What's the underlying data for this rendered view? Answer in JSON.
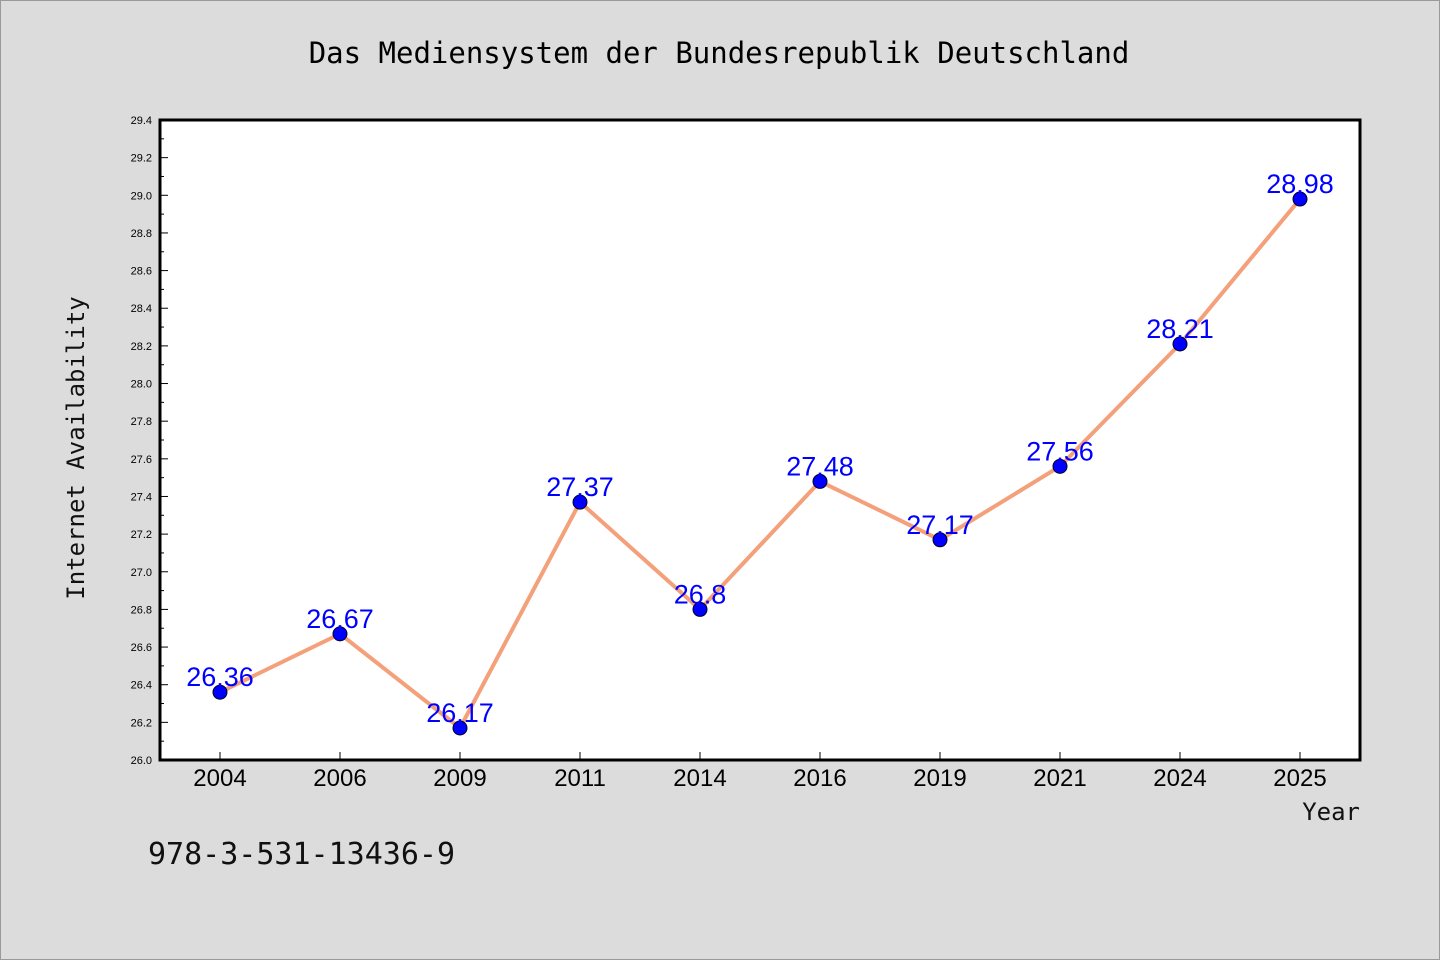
{
  "chart_data": {
    "type": "line",
    "title": "Das Mediensystem der Bundesrepublik Deutschland",
    "xlabel": "Year",
    "ylabel": "Internet Availability",
    "categories": [
      "2004",
      "2006",
      "2009",
      "2011",
      "2014",
      "2016",
      "2019",
      "2021",
      "2024",
      "2025"
    ],
    "values": [
      26.36,
      26.67,
      26.17,
      27.37,
      26.8,
      27.48,
      27.17,
      27.56,
      28.21,
      28.98
    ],
    "value_labels": [
      "26.36",
      "26.67",
      "26.17",
      "27.37",
      "26.8",
      "27.48",
      "27.17",
      "27.56",
      "28.21",
      "28.98"
    ],
    "ylim": [
      26.0,
      29.4
    ],
    "y_ticks": [
      "26.0",
      "26.2",
      "26.4",
      "26.6",
      "26.8",
      "27.0",
      "27.2",
      "27.4",
      "27.6",
      "27.8",
      "28.0",
      "28.2",
      "28.4",
      "28.6",
      "28.8",
      "29.0",
      "29.2",
      "29.4"
    ],
    "grid": false,
    "line_color": "#f4a07a",
    "marker_color": "#0000ff",
    "label_color": "#0000ff",
    "background_color": "#dcdcdc",
    "plot_background": "#ffffff"
  },
  "footer": {
    "isbn": "978-3-531-13436-9"
  }
}
